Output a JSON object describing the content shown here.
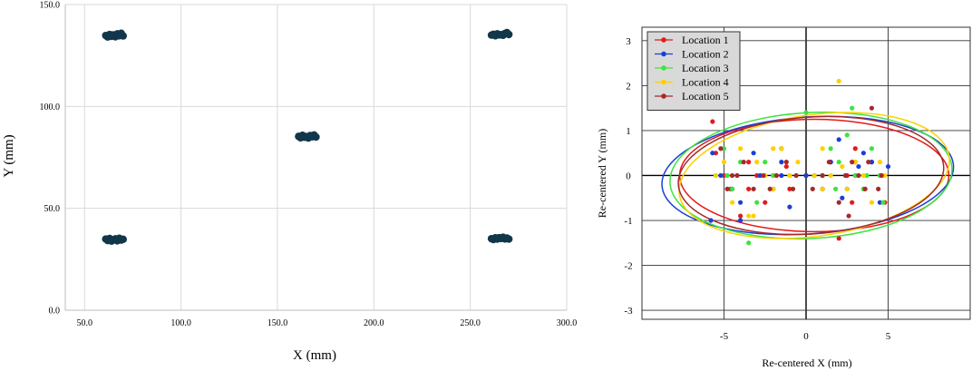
{
  "chart_data": [
    {
      "type": "scatter",
      "title": "",
      "xlabel": "X (mm)",
      "ylabel": "Y (mm)",
      "xlim": [
        40,
        300
      ],
      "ylim": [
        0,
        150
      ],
      "x_ticks": [
        "50.0",
        "100.0",
        "150.0",
        "200.0",
        "250.0",
        "300.0"
      ],
      "y_ticks": [
        "0.0",
        "50.0",
        "100.0",
        "150.0"
      ],
      "grid": true,
      "color": "#12364a",
      "points": [
        [
          61,
          134.8
        ],
        [
          62,
          134.1
        ],
        [
          63,
          135.3
        ],
        [
          64,
          134.4
        ],
        [
          65,
          135.1
        ],
        [
          66,
          134.2
        ],
        [
          67,
          135.6
        ],
        [
          68,
          134.7
        ],
        [
          69,
          135.9
        ],
        [
          70,
          134.6
        ],
        [
          61,
          34.9
        ],
        [
          62,
          34.2
        ],
        [
          63,
          35.2
        ],
        [
          64,
          33.9
        ],
        [
          65,
          34.6
        ],
        [
          66,
          35.0
        ],
        [
          67,
          34.1
        ],
        [
          68,
          35.3
        ],
        [
          69,
          34.4
        ],
        [
          70,
          34.8
        ],
        [
          161,
          85.3
        ],
        [
          162,
          84.6
        ],
        [
          163,
          85.8
        ],
        [
          164,
          84.9
        ],
        [
          165,
          85.2
        ],
        [
          166,
          84.5
        ],
        [
          167,
          85.7
        ],
        [
          168,
          85.1
        ],
        [
          169,
          86.0
        ],
        [
          170,
          85.0
        ],
        [
          261,
          135.0
        ],
        [
          262,
          135.4
        ],
        [
          263,
          134.7
        ],
        [
          264,
          135.6
        ],
        [
          265,
          135.1
        ],
        [
          266,
          135.2
        ],
        [
          267,
          134.9
        ],
        [
          268,
          135.8
        ],
        [
          269,
          136.2
        ],
        [
          270,
          135.3
        ],
        [
          261,
          35.1
        ],
        [
          262,
          34.7
        ],
        [
          263,
          35.5
        ],
        [
          264,
          34.9
        ],
        [
          265,
          35.6
        ],
        [
          266,
          35.2
        ],
        [
          267,
          35.8
        ],
        [
          268,
          35.0
        ],
        [
          269,
          35.4
        ],
        [
          270,
          34.9
        ]
      ]
    },
    {
      "type": "scatter",
      "title": "",
      "xlabel": "Re-centered X (mm)",
      "ylabel": "Re-centered Y (mm)",
      "xlim": [
        -10,
        10
      ],
      "ylim": [
        -3.2,
        3.3
      ],
      "x_ticks": [
        "-5",
        "0",
        "5"
      ],
      "y_ticks": [
        "-3",
        "-2",
        "-1",
        "0",
        "1",
        "2",
        "3"
      ],
      "grid": true,
      "legend": "top-left",
      "series": [
        {
          "name": "Location 1",
          "color": "#e31a1c",
          "points": [
            [
              -5.7,
              1.2
            ],
            [
              -5.5,
              0.5
            ],
            [
              -5,
              0
            ],
            [
              -4.6,
              -0.3
            ],
            [
              -4,
              -0.9
            ],
            [
              -3.5,
              0.3
            ],
            [
              -3,
              0
            ],
            [
              -2.5,
              -0.6
            ],
            [
              -2,
              0
            ],
            [
              -1.5,
              0.6
            ],
            [
              -1,
              -0.3
            ],
            [
              0,
              0
            ],
            [
              1,
              -0.3
            ],
            [
              1.5,
              0.3
            ],
            [
              2,
              -1.4
            ],
            [
              2.5,
              0
            ],
            [
              3,
              0.6
            ],
            [
              3.5,
              -0.3
            ],
            [
              4,
              0.3
            ],
            [
              4.5,
              0
            ],
            [
              4.8,
              -0.6
            ],
            [
              3,
              0.3
            ],
            [
              -3.5,
              -0.3
            ],
            [
              2.8,
              -0.6
            ],
            [
              -1.2,
              0.2
            ]
          ]
        },
        {
          "name": "Location 2",
          "color": "#1a3fd8",
          "points": [
            [
              -5.8,
              -1.0
            ],
            [
              -5.7,
              0.5
            ],
            [
              -5.2,
              0
            ],
            [
              -4.5,
              -0.3
            ],
            [
              -4,
              -0.6
            ],
            [
              -3.2,
              0.5
            ],
            [
              -2.8,
              0
            ],
            [
              -2,
              -0.3
            ],
            [
              -1.5,
              0.3
            ],
            [
              -1,
              -0.7
            ],
            [
              0,
              0
            ],
            [
              0.5,
              0
            ],
            [
              1,
              -0.3
            ],
            [
              1.5,
              0.3
            ],
            [
              2,
              0.8
            ],
            [
              2.5,
              -0.3
            ],
            [
              3,
              0
            ],
            [
              3.5,
              0.5
            ],
            [
              4,
              0.3
            ],
            [
              4.5,
              -0.6
            ],
            [
              5,
              0.2
            ],
            [
              -4,
              -1.0
            ],
            [
              3.2,
              0.2
            ],
            [
              -1.5,
              0.0
            ],
            [
              2.2,
              -0.5
            ]
          ]
        },
        {
          "name": "Location 3",
          "color": "#3ee33e",
          "points": [
            [
              -5.5,
              0
            ],
            [
              -5,
              0.6
            ],
            [
              -4.5,
              -0.3
            ],
            [
              -4,
              0.3
            ],
            [
              -3.5,
              -1.5
            ],
            [
              -3,
              -0.6
            ],
            [
              -2.5,
              0.3
            ],
            [
              -2,
              0
            ],
            [
              -1.5,
              0.6
            ],
            [
              -1,
              0
            ],
            [
              0,
              1.4
            ],
            [
              0.5,
              0
            ],
            [
              1,
              0
            ],
            [
              1.5,
              0.6
            ],
            [
              2,
              0.3
            ],
            [
              2.5,
              0.9
            ],
            [
              2.8,
              1.5
            ],
            [
              3,
              0
            ],
            [
              3.5,
              -0.3
            ],
            [
              4,
              0.6
            ],
            [
              4.5,
              0
            ],
            [
              4.7,
              -0.6
            ],
            [
              -4.8,
              0.0
            ],
            [
              1.8,
              -0.3
            ],
            [
              3.7,
              0.0
            ]
          ]
        },
        {
          "name": "Location 4",
          "color": "#ffd000",
          "points": [
            [
              -5.5,
              0
            ],
            [
              -5,
              0.3
            ],
            [
              -4.5,
              -0.6
            ],
            [
              -4,
              0.6
            ],
            [
              -3.5,
              -0.9
            ],
            [
              -3,
              0.3
            ],
            [
              -2.5,
              0
            ],
            [
              -2,
              -0.3
            ],
            [
              -1.5,
              0.6
            ],
            [
              -1,
              0
            ],
            [
              -0.5,
              0.3
            ],
            [
              0.5,
              0
            ],
            [
              1,
              0.6
            ],
            [
              1.5,
              0
            ],
            [
              2,
              2.1
            ],
            [
              2.5,
              -0.3
            ],
            [
              3,
              0.3
            ],
            [
              3.5,
              0
            ],
            [
              4,
              -0.6
            ],
            [
              4.5,
              0.3
            ],
            [
              4.8,
              0
            ],
            [
              -3.2,
              -0.9
            ],
            [
              2.2,
              0.2
            ],
            [
              -2.0,
              0.6
            ],
            [
              1.0,
              -0.3
            ]
          ]
        },
        {
          "name": "Location 5",
          "color": "#a52a2a",
          "points": [
            [
              -5.2,
              0.6
            ],
            [
              -4.8,
              -0.3
            ],
            [
              -4.2,
              0
            ],
            [
              -3.8,
              0.3
            ],
            [
              -3.2,
              -0.3
            ],
            [
              -2.6,
              0
            ],
            [
              -2.2,
              -0.3
            ],
            [
              -1.8,
              0
            ],
            [
              -1.2,
              0.3
            ],
            [
              -0.6,
              0
            ],
            [
              0.4,
              -0.3
            ],
            [
              1,
              0
            ],
            [
              1.4,
              0.3
            ],
            [
              2,
              -0.6
            ],
            [
              2.4,
              0
            ],
            [
              2.8,
              0.3
            ],
            [
              3.2,
              0
            ],
            [
              3.6,
              -0.3
            ],
            [
              4,
              1.5
            ],
            [
              4.4,
              -0.3
            ],
            [
              4.6,
              0
            ],
            [
              -4.5,
              0.0
            ],
            [
              2.6,
              -0.9
            ],
            [
              -0.8,
              -0.3
            ],
            [
              3.8,
              0.3
            ]
          ]
        }
      ],
      "ellipses": [
        {
          "series": "Location 1",
          "cx": 0.5,
          "cy": 0,
          "rx": 8.2,
          "ry": 1.25,
          "angle": 0
        },
        {
          "series": "Location 2",
          "cx": 0.1,
          "cy": 0,
          "rx": 8.9,
          "ry": 1.3,
          "angle": 4
        },
        {
          "series": "Location 3",
          "cx": 0.3,
          "cy": 0,
          "rx": 8.6,
          "ry": 1.4,
          "angle": 3
        },
        {
          "series": "Location 4",
          "cx": 0.5,
          "cy": 0,
          "rx": 8.3,
          "ry": 1.35,
          "angle": 8
        },
        {
          "series": "Location 5",
          "cx": 0.3,
          "cy": 0,
          "rx": 8.1,
          "ry": 1.3,
          "angle": 4
        }
      ]
    }
  ]
}
